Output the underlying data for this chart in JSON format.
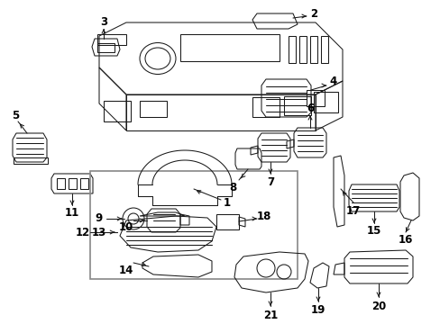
{
  "background_color": "#ffffff",
  "line_color": "#1a1a1a",
  "text_color": "#000000",
  "fig_width": 4.89,
  "fig_height": 3.6,
  "dpi": 100,
  "font_size": 8.5,
  "lw": 0.75
}
